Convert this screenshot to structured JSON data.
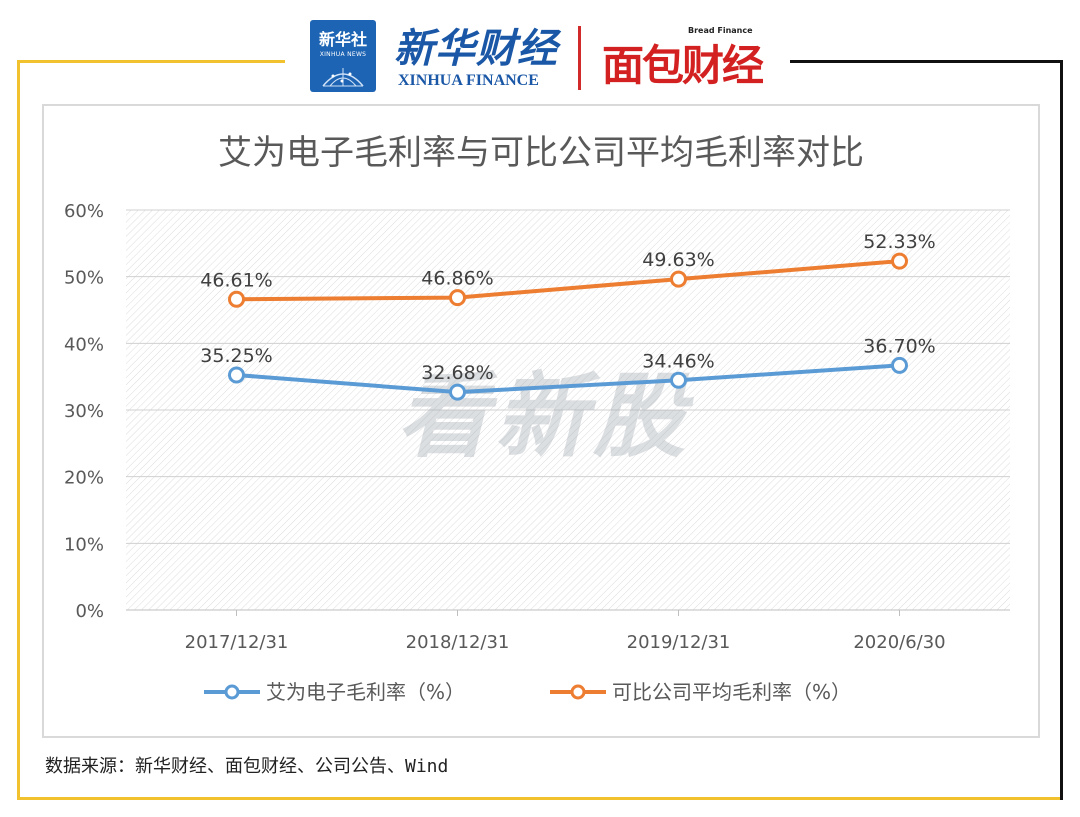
{
  "header": {
    "xinhua_badge_cn": "新华社",
    "xinhua_badge_en": "XINHUA NEWS",
    "xinhua_finance_cn": "新华财经",
    "xinhua_finance_en": "XINHUA FINANCE",
    "bread_finance_en": "Bread Finance",
    "bread_finance_cn": "面包财经"
  },
  "watermark": "看新股",
  "source_text": "数据来源：新华财经、面包财经、公司公告、Wind",
  "colors": {
    "frame_accent": "#f2c12e",
    "series_blue": "#5b9bd5",
    "series_orange": "#ed7d31"
  },
  "chart_data": {
    "type": "line",
    "title": "艾为电子毛利率与可比公司平均毛利率对比",
    "categories": [
      "2017/12/31",
      "2018/12/31",
      "2019/12/31",
      "2020/6/30"
    ],
    "y_ticks": [
      "0%",
      "10%",
      "20%",
      "30%",
      "40%",
      "50%",
      "60%"
    ],
    "ylim": [
      0,
      60
    ],
    "grid": true,
    "legend_position": "bottom",
    "series": [
      {
        "name": "艾为电子毛利率（%）",
        "color": "#5b9bd5",
        "values": [
          35.25,
          32.68,
          34.46,
          36.7
        ],
        "labels": [
          "35.25%",
          "32.68%",
          "34.46%",
          "36.70%"
        ]
      },
      {
        "name": "可比公司平均毛利率（%）",
        "color": "#ed7d31",
        "values": [
          46.61,
          46.86,
          49.63,
          52.33
        ],
        "labels": [
          "46.61%",
          "46.86%",
          "49.63%",
          "52.33%"
        ]
      }
    ]
  }
}
